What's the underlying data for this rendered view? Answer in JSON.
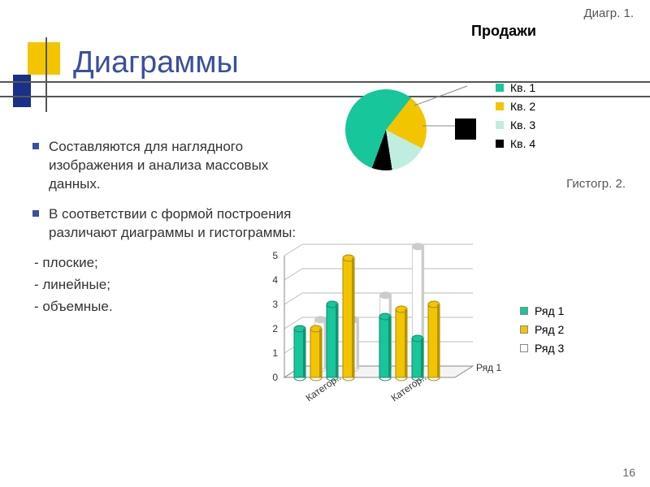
{
  "top_labels": {
    "line1": "Диагр. 1.",
    "line2": "Продажи"
  },
  "title": "Диаграммы",
  "accent": {
    "yellow": "#f2c500",
    "blue": "#1a2f8a",
    "line": "#555555"
  },
  "bullets": [
    {
      "type": "sq",
      "text": "Составляются для наглядного изображения и анализа массовых данных."
    },
    {
      "type": "sq",
      "text": "В соответствии с формой построения различают диаграммы и гистограммы:"
    },
    {
      "type": "dash",
      "text": "- плоские;"
    },
    {
      "type": "dash",
      "text": "- линейные;"
    },
    {
      "type": "dash",
      "text": "- объемные."
    }
  ],
  "pie": {
    "type": "pie",
    "slices": [
      {
        "label": "Кв. 1",
        "value": 55,
        "color": "#17c69a"
      },
      {
        "label": "Кв. 2",
        "value": 22,
        "color": "#f2c500"
      },
      {
        "label": "Кв. 3",
        "value": 15,
        "color": "#bfeee0"
      },
      {
        "label": "Кв. 4",
        "value": 8,
        "color": "#000000"
      }
    ],
    "background": "#ffffff",
    "legend_font_size": 14
  },
  "histo_label": "Гистогр. 2.",
  "bar": {
    "type": "bar3d",
    "categories": [
      "Категор..",
      "Категор.."
    ],
    "y_ticks": [
      0,
      1,
      2,
      3,
      4,
      5
    ],
    "ylim": [
      0,
      5
    ],
    "series": [
      {
        "name": "Ряд 1",
        "color": "#17c69a",
        "values": [
          [
            2.0,
            4.1,
            3.0,
            2.3
          ],
          [
            2.5,
            4.3,
            1.6,
            3.2
          ]
        ]
      },
      {
        "name": "Ряд 2",
        "color": "#f2c500",
        "values": [
          [
            2.4,
            2.0,
            1.5,
            4.9
          ],
          [
            2.2,
            2.8,
            2.0,
            3.0
          ]
        ]
      },
      {
        "name": "Ряд 3",
        "color": "#ffffff",
        "values": [
          [
            2.0,
            2.0,
            3.0,
            5.0
          ]
        ]
      }
    ],
    "depth_series_label": "Ряд 1",
    "axis_color": "#888888",
    "grid_color": "#bbbbbb",
    "label_fontsize": 12,
    "plot_bg": "#ffffff"
  },
  "page_number": "16"
}
